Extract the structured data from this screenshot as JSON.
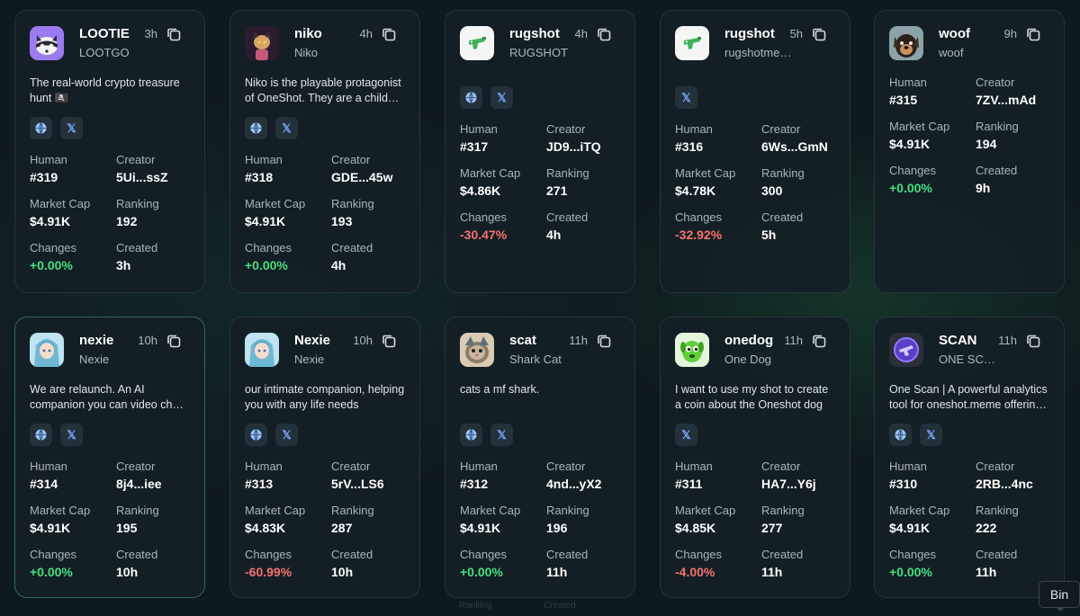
{
  "labels": {
    "human": "Human",
    "creator": "Creator",
    "market_cap": "Market Cap",
    "ranking": "Ranking",
    "changes": "Changes",
    "created": "Created"
  },
  "icons": {
    "website": "globe-icon",
    "twitter": "x-twitter-icon",
    "copy": "copy-icon"
  },
  "colors": {
    "positive": "#4ade80",
    "negative": "#f87171",
    "link_button_bg": "#23313b",
    "active_border": "#2f6b58"
  },
  "tooltip": "Bin",
  "cards": [
    {
      "name": "LOOTIE",
      "ticker": "LOOTGO",
      "age": "3h",
      "description": "The real-world crypto treasure hunt 🏴‍☠️",
      "avatar": "raccoon-avatar",
      "links": [
        "website",
        "twitter"
      ],
      "human": "#319",
      "creator": "5Ui...ssZ",
      "market_cap": "$4.91K",
      "ranking": "192",
      "changes": "+0.00%",
      "change_sign": "positive",
      "created": "3h"
    },
    {
      "name": "niko",
      "ticker": "Niko",
      "age": "4h",
      "description": "Niko is the playable protagonist of OneShot. They are a child…",
      "avatar": "niko-cat-avatar",
      "links": [
        "website",
        "twitter"
      ],
      "human": "#318",
      "creator": "GDE...45w",
      "market_cap": "$4.91K",
      "ranking": "193",
      "changes": "+0.00%",
      "change_sign": "positive",
      "created": "4h"
    },
    {
      "name": "rugshot",
      "ticker": "RUGSHOT",
      "age": "4h",
      "description": "",
      "avatar": "green-gun-avatar",
      "links": [
        "website",
        "twitter"
      ],
      "human": "#317",
      "creator": "JD9...iTQ",
      "market_cap": "$4.86K",
      "ranking": "271",
      "changes": "-30.47%",
      "change_sign": "negative",
      "created": "4h"
    },
    {
      "name": "rugshot",
      "ticker": "rugshotme…",
      "age": "5h",
      "description": "",
      "avatar": "green-gun-avatar",
      "links": [
        "twitter"
      ],
      "human": "#316",
      "creator": "6Ws...GmN",
      "market_cap": "$4.78K",
      "ranking": "300",
      "changes": "-32.92%",
      "change_sign": "negative",
      "created": "5h"
    },
    {
      "name": "woof",
      "ticker": "woof",
      "age": "9h",
      "description": "",
      "avatar": "dog-avatar",
      "links": [],
      "human": "#315",
      "creator": "7ZV...mAd",
      "market_cap": "$4.91K",
      "ranking": "194",
      "changes": "+0.00%",
      "change_sign": "positive",
      "created": "9h"
    },
    {
      "name": "nexie",
      "ticker": "Nexie",
      "age": "10h",
      "description": "We are relaunch. An AI companion you can video ch…",
      "avatar": "anime-girl-avatar",
      "links": [
        "website",
        "twitter"
      ],
      "human": "#314",
      "creator": "8j4...iee",
      "market_cap": "$4.91K",
      "ranking": "195",
      "changes": "+0.00%",
      "change_sign": "positive",
      "created": "10h"
    },
    {
      "name": "Nexie",
      "ticker": "Nexie",
      "age": "10h",
      "description": "our intimate companion, helping you with any life needs",
      "avatar": "anime-girl-avatar",
      "links": [
        "website",
        "twitter"
      ],
      "human": "#313",
      "creator": "5rV...LS6",
      "market_cap": "$4.83K",
      "ranking": "287",
      "changes": "-60.99%",
      "change_sign": "negative",
      "created": "10h"
    },
    {
      "name": "scat",
      "ticker": "Shark Cat",
      "age": "11h",
      "description": "cats a mf shark.",
      "avatar": "shark-cat-avatar",
      "links": [
        "website",
        "twitter"
      ],
      "human": "#312",
      "creator": "4nd...yX2",
      "market_cap": "$4.91K",
      "ranking": "196",
      "changes": "+0.00%",
      "change_sign": "positive",
      "created": "11h"
    },
    {
      "name": "onedog",
      "ticker": "One Dog",
      "age": "11h",
      "description": "I want to use my shot to create a coin about the Oneshot dog",
      "avatar": "green-dog-avatar",
      "links": [
        "twitter"
      ],
      "human": "#311",
      "creator": "HA7...Y6j",
      "market_cap": "$4.85K",
      "ranking": "277",
      "changes": "-4.00%",
      "change_sign": "negative",
      "created": "11h"
    },
    {
      "name": "SCAN",
      "ticker": "ONE SC…",
      "age": "11h",
      "description": "One Scan | A powerful analytics tool for oneshot.meme offerin…",
      "avatar": "purple-scanner-avatar",
      "links": [
        "website",
        "twitter"
      ],
      "human": "#310",
      "creator": "2RB...4nc",
      "market_cap": "$4.91K",
      "ranking": "222",
      "changes": "+0.00%",
      "change_sign": "positive",
      "created": "11h"
    }
  ],
  "cutoff_text": [
    "Ranking",
    "Created"
  ]
}
